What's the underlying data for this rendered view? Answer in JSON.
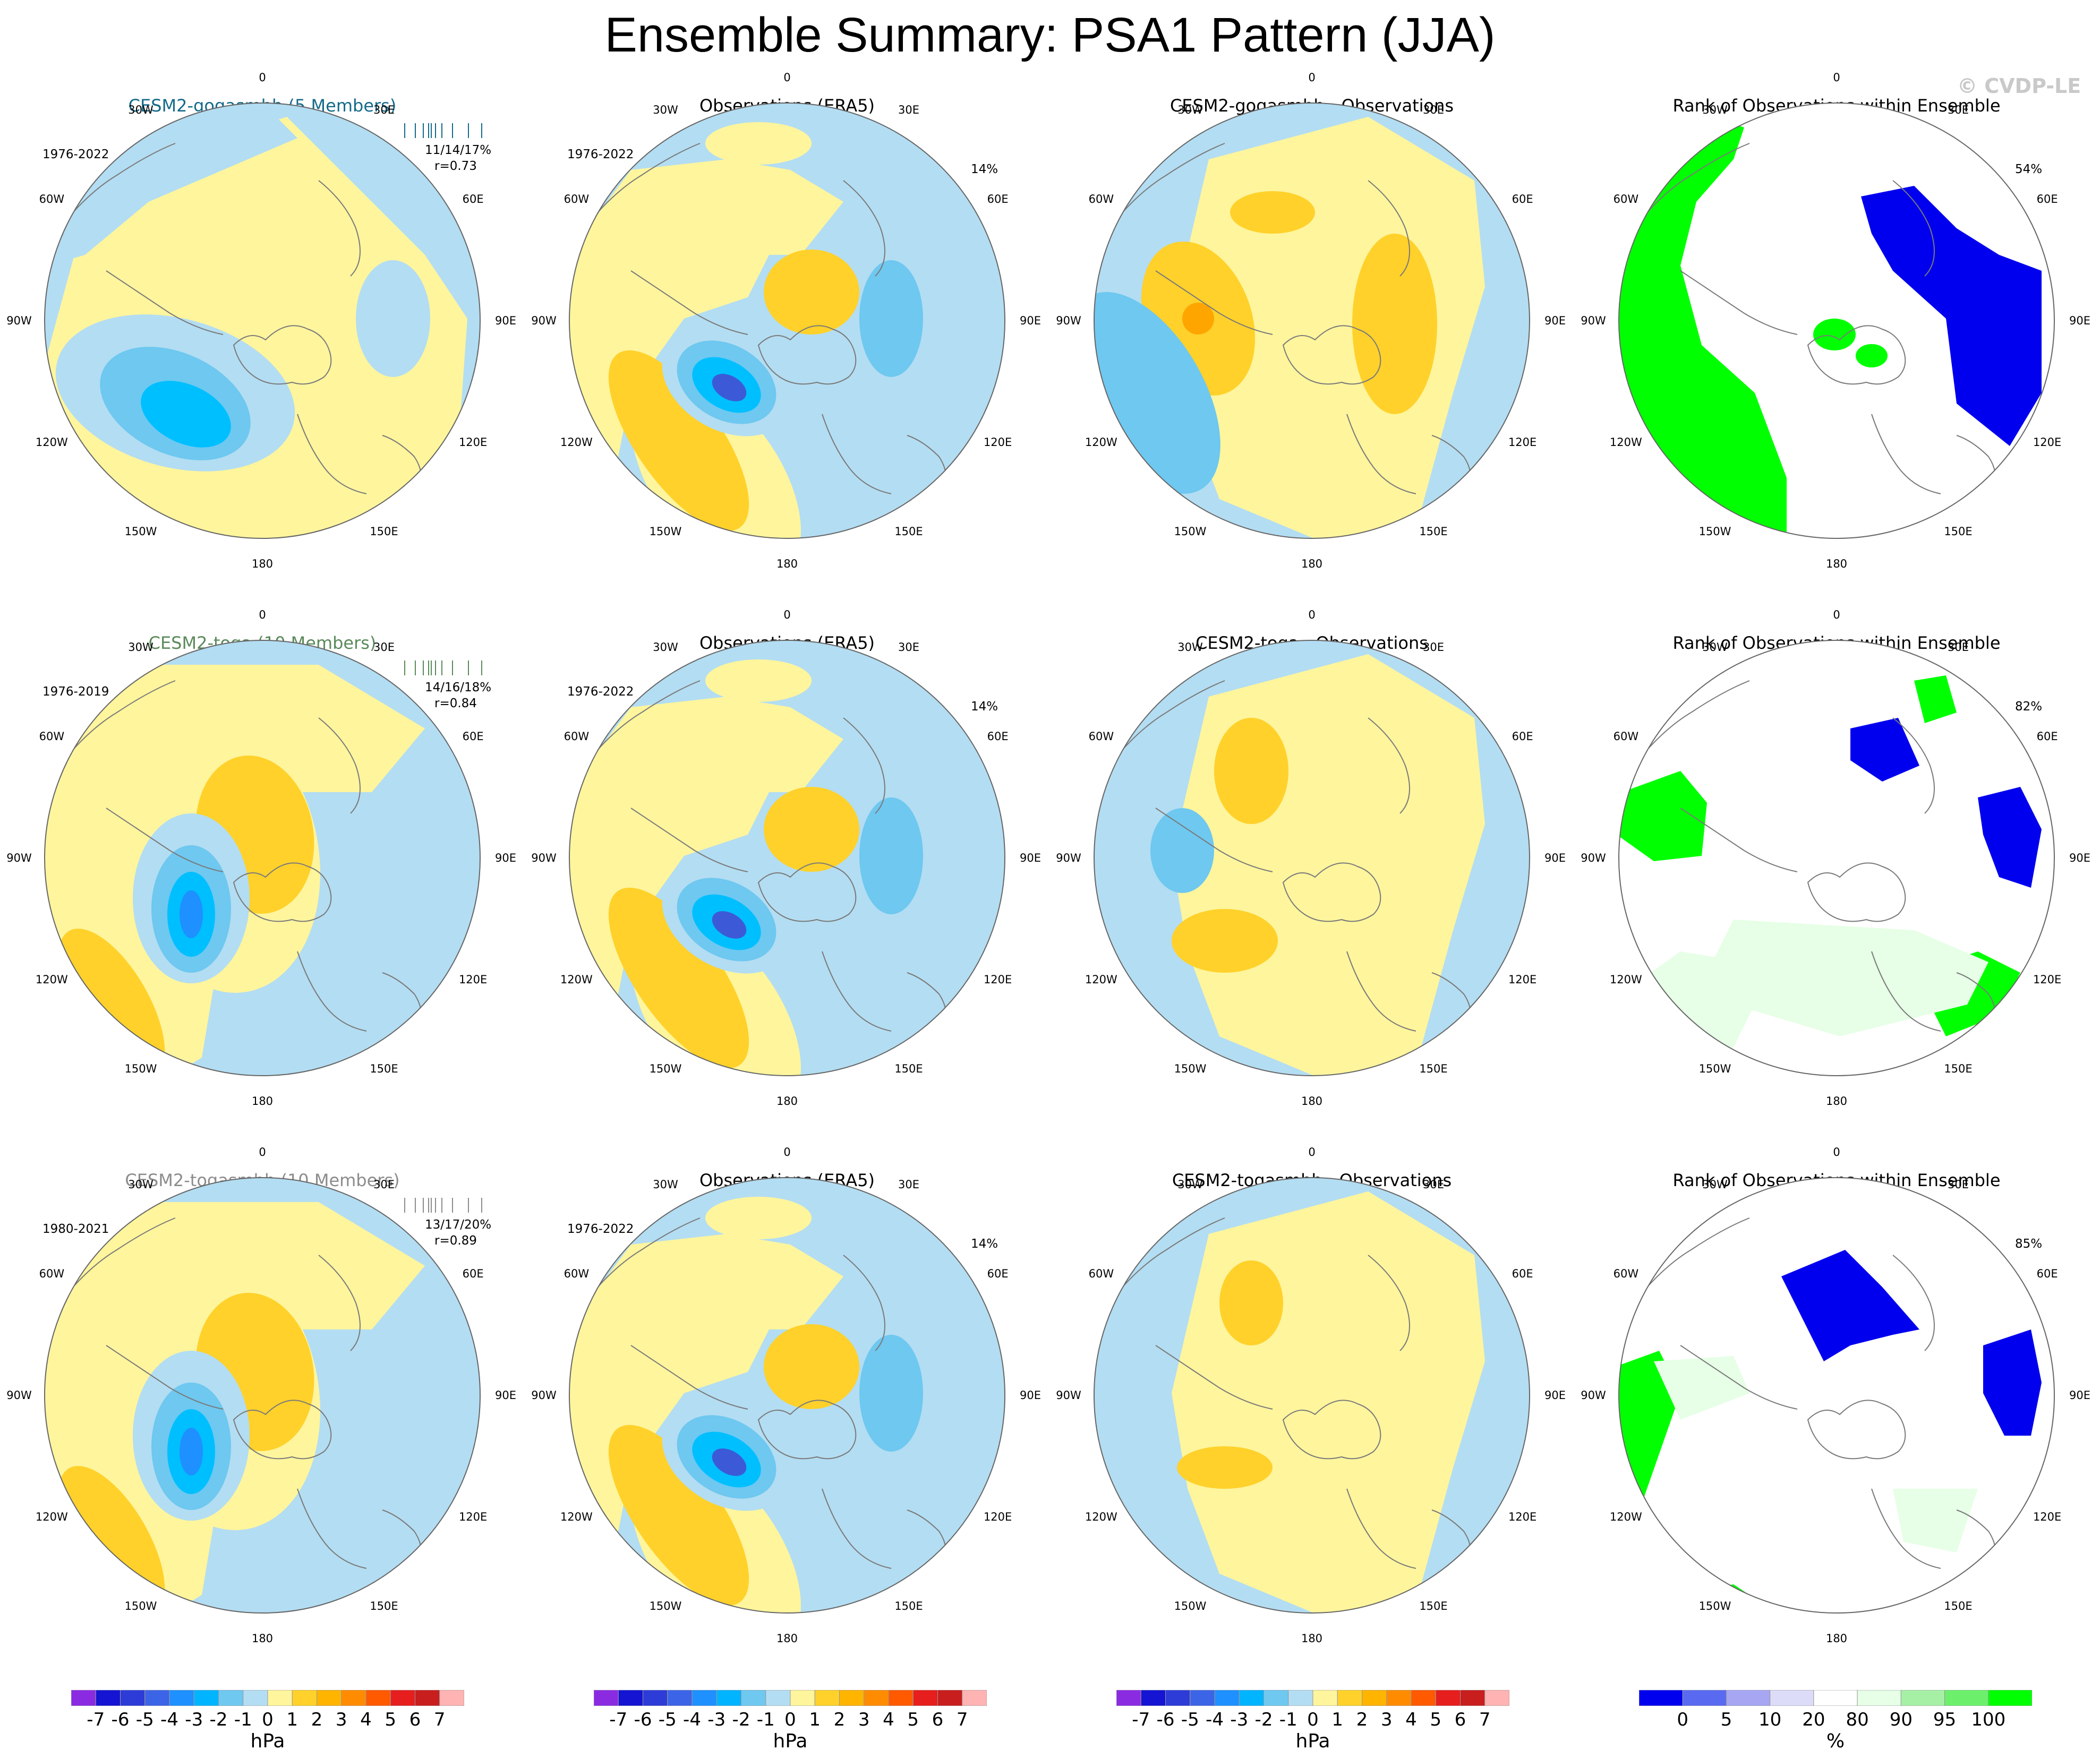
{
  "title": "Ensemble Summary: PSA1 Pattern (JJA)",
  "watermark": "© CVDP-LE",
  "colors": {
    "ocean_bg": "#b3ddf2",
    "neg1": "#b3ddf2",
    "neg2": "#6ec8f0",
    "neg3": "#00bfff",
    "neg4": "#1e90ff",
    "neg5": "#3c5ad7",
    "pos1": "#fff59d",
    "pos2": "#ffd12a",
    "pos3": "#ffa500",
    "rank_lo": "#0000ee",
    "rank_lo2": "#dcdcf8",
    "rank_hi": "#00ff00",
    "rank_hi2": "#e6ffe6"
  },
  "lon_labels": [
    "0",
    "30E",
    "60E",
    "90E",
    "120E",
    "150E",
    "180",
    "150W",
    "120W",
    "90W",
    "60W",
    "30W"
  ],
  "rows": [
    {
      "model": {
        "title": "CESM2-gogasmbb (5 Members)",
        "title_color": "#156a8a",
        "period": "1976-2022",
        "stats": "11/14/17%",
        "corr": "r=0.73"
      },
      "obs": {
        "title": "Observations (ERA5)",
        "period": "1976-2022",
        "pct": "14%"
      },
      "diff": {
        "title": "CESM2-gogasmbb - Observations"
      },
      "rank": {
        "title": "Rank of Observations within Ensemble",
        "pct": "54%"
      }
    },
    {
      "model": {
        "title": "CESM2-toga (10 Members)",
        "title_color": "#5a8a5a",
        "period": "1976-2019",
        "stats": "14/16/18%",
        "corr": "r=0.84"
      },
      "obs": {
        "title": "Observations (ERA5)",
        "period": "1976-2022",
        "pct": "14%"
      },
      "diff": {
        "title": "CESM2-toga - Observations"
      },
      "rank": {
        "title": "Rank of Observations within Ensemble",
        "pct": "82%"
      }
    },
    {
      "model": {
        "title": "CESM2-togasmbb (10 Members)",
        "title_color": "#8c8c8c",
        "period": "1980-2021",
        "stats": "13/17/20%",
        "corr": "r=0.89"
      },
      "obs": {
        "title": "Observations (ERA5)",
        "period": "1976-2022",
        "pct": "14%"
      },
      "diff": {
        "title": "CESM2-togasmbb - Observations"
      },
      "rank": {
        "title": "Rank of Observations within Ensemble",
        "pct": "85%"
      }
    }
  ],
  "hpa_colorbar": {
    "labels": [
      "-7",
      "-6",
      "-5",
      "-4",
      "-3",
      "-2",
      "-1",
      "0",
      "1",
      "2",
      "3",
      "4",
      "5",
      "6",
      "7"
    ],
    "colors": [
      "#8a2be2",
      "#1414d2",
      "#2d3cd7",
      "#3c64e6",
      "#1e90ff",
      "#00b4ff",
      "#6ec8f0",
      "#b3ddf2",
      "#fff59d",
      "#ffd12a",
      "#ffb400",
      "#ff8c00",
      "#ff5a00",
      "#e61e1e",
      "#c81e1e",
      "#ffb3b3"
    ],
    "unit": "hPa"
  },
  "rank_colorbar": {
    "labels": [
      "0",
      "5",
      "10",
      "20",
      "80",
      "90",
      "95",
      "100"
    ],
    "colors": [
      "#0000ee",
      "#5a6af0",
      "#a6a6f2",
      "#dcdcf8",
      "#ffffff",
      "#e6ffe6",
      "#a6f0a6",
      "#6cf06c",
      "#00ff00"
    ],
    "unit": "%"
  }
}
